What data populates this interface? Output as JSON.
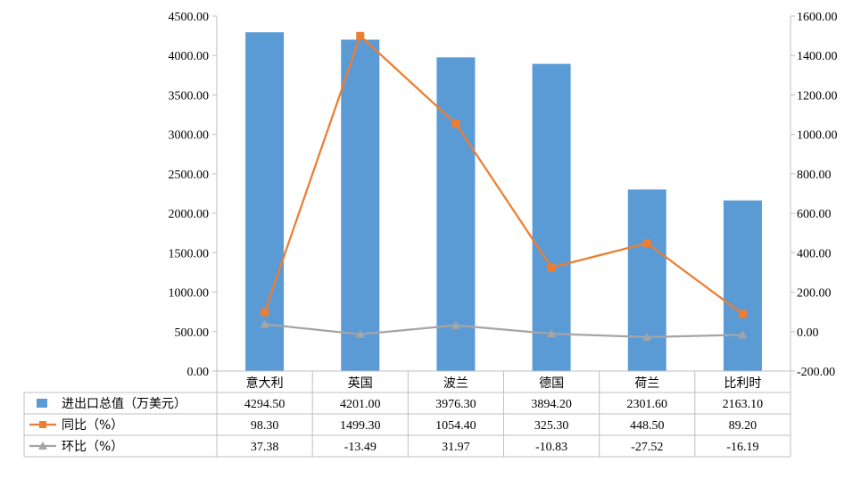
{
  "chart_data": {
    "type": "bar+line",
    "categories": [
      "意大利",
      "英国",
      "波兰",
      "德国",
      "荷兰",
      "比利时"
    ],
    "series": [
      {
        "name": "进出口总值（万美元）",
        "type": "bar",
        "axis": "left",
        "color": "#5B9BD5",
        "values": [
          4294.5,
          4201.0,
          3976.3,
          3894.2,
          2301.6,
          2163.1
        ],
        "labels": [
          "4294.50",
          "4201.00",
          "3976.30",
          "3894.20",
          "2301.60",
          "2163.10"
        ]
      },
      {
        "name": "同比（%）",
        "type": "line",
        "axis": "right",
        "color": "#ED7D31",
        "marker": "square",
        "values": [
          98.3,
          1499.3,
          1054.4,
          325.3,
          448.5,
          89.2
        ],
        "labels": [
          "98.30",
          "1499.30",
          "1054.40",
          "325.30",
          "448.50",
          "89.20"
        ]
      },
      {
        "name": "环比（%）",
        "type": "line",
        "axis": "right",
        "color": "#A5A5A5",
        "marker": "triangle",
        "values": [
          37.38,
          -13.49,
          31.97,
          -10.83,
          -27.52,
          -16.19
        ],
        "labels": [
          "37.38",
          "-13.49",
          "31.97",
          "-10.83",
          "-27.52",
          "-16.19"
        ]
      }
    ],
    "y_left": {
      "min": 0,
      "max": 4500,
      "step": 500,
      "ticks": [
        "0.00",
        "500.00",
        "1000.00",
        "1500.00",
        "2000.00",
        "2500.00",
        "3000.00",
        "3500.00",
        "4000.00",
        "4500.00"
      ]
    },
    "y_right": {
      "min": -200,
      "max": 1600,
      "step": 200,
      "ticks": [
        "-200.00",
        "0.00",
        "200.00",
        "400.00",
        "600.00",
        "800.00",
        "1000.00",
        "1200.00",
        "1400.00",
        "1600.00"
      ]
    },
    "grid": false,
    "legend": "data-table"
  }
}
